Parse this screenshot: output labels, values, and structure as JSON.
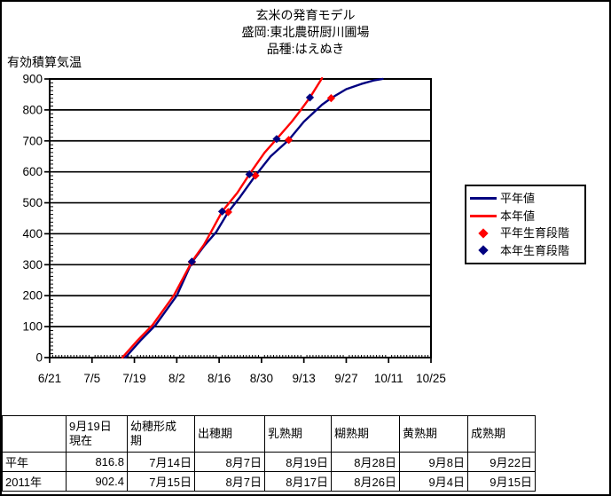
{
  "title": {
    "lines": [
      "玄米の発育モデル",
      "盛岡:東北農研厨川圃場",
      "品種:はえぬき"
    ]
  },
  "chart_data": {
    "type": "line",
    "title": "玄米の発育モデル",
    "subtitle": [
      "盛岡:東北農研厨川圃場",
      "品種:はえぬき"
    ],
    "y_axis_label": "有効積算気温",
    "x_tick_labels": [
      "6/21",
      "7/5",
      "7/19",
      "8/2",
      "8/16",
      "8/30",
      "9/13",
      "9/27",
      "10/11",
      "10/25"
    ],
    "y_ticks": [
      0,
      100,
      200,
      300,
      400,
      500,
      600,
      700,
      800,
      900
    ],
    "ylim": [
      0,
      900
    ],
    "xlim_dates": [
      "6/21",
      "10/25"
    ],
    "grid": "horizontal-major-only",
    "legend_position": "right",
    "colors": {
      "normal_year": "#000080",
      "this_year": "#ff0000"
    },
    "series": [
      {
        "name": "平年値",
        "kind": "line",
        "color": "#000080",
        "points": [
          [
            "7/16",
            0
          ],
          [
            "7/21",
            55
          ],
          [
            "7/26",
            105
          ],
          [
            "8/2",
            200
          ],
          [
            "8/7",
            308
          ],
          [
            "8/11",
            360
          ],
          [
            "8/15",
            405
          ],
          [
            "8/19",
            470
          ],
          [
            "8/23",
            520
          ],
          [
            "8/28",
            588
          ],
          [
            "9/2",
            650
          ],
          [
            "9/8",
            703
          ],
          [
            "9/13",
            762
          ],
          [
            "9/19",
            816.8
          ],
          [
            "9/22",
            838
          ],
          [
            "9/27",
            867
          ],
          [
            "10/2",
            884
          ],
          [
            "10/6",
            895
          ],
          [
            "10/9",
            900
          ]
        ]
      },
      {
        "name": "本年値",
        "kind": "line",
        "color": "#ff0000",
        "points": [
          [
            "7/15",
            0
          ],
          [
            "7/20",
            55
          ],
          [
            "7/25",
            105
          ],
          [
            "8/1",
            200
          ],
          [
            "8/7",
            310
          ],
          [
            "8/11",
            365
          ],
          [
            "8/13",
            400
          ],
          [
            "8/17",
            472
          ],
          [
            "8/22",
            532
          ],
          [
            "8/26",
            592
          ],
          [
            "8/31",
            662
          ],
          [
            "9/4",
            706
          ],
          [
            "9/9",
            762
          ],
          [
            "9/12",
            800
          ],
          [
            "9/15",
            840
          ],
          [
            "9/19",
            902.4
          ]
        ]
      },
      {
        "name": "平年生育段階",
        "kind": "diamond",
        "color": "#ff0000",
        "points": [
          [
            "8/7",
            308
          ],
          [
            "8/19",
            470
          ],
          [
            "8/28",
            588
          ],
          [
            "9/8",
            703
          ],
          [
            "9/22",
            838
          ]
        ]
      },
      {
        "name": "本年生育段階",
        "kind": "diamond",
        "color": "#000080",
        "points": [
          [
            "8/7",
            310
          ],
          [
            "8/17",
            472
          ],
          [
            "8/26",
            592
          ],
          [
            "9/4",
            706
          ],
          [
            "9/15",
            840
          ]
        ]
      }
    ]
  },
  "table": {
    "columns": [
      "",
      "9月19日\n現在",
      "幼穂形成\n期",
      "出穂期",
      "乳熟期",
      "糊熟期",
      "黄熟期",
      "成熟期"
    ],
    "rows": [
      {
        "label": "平年",
        "values": [
          "816.8",
          "7月14日",
          "8月7日",
          "8月19日",
          "8月28日",
          "9月8日",
          "9月22日"
        ]
      },
      {
        "label": "2011年",
        "values": [
          "902.4",
          "7月15日",
          "8月7日",
          "8月17日",
          "8月26日",
          "9月4日",
          "9月15日"
        ]
      }
    ]
  }
}
